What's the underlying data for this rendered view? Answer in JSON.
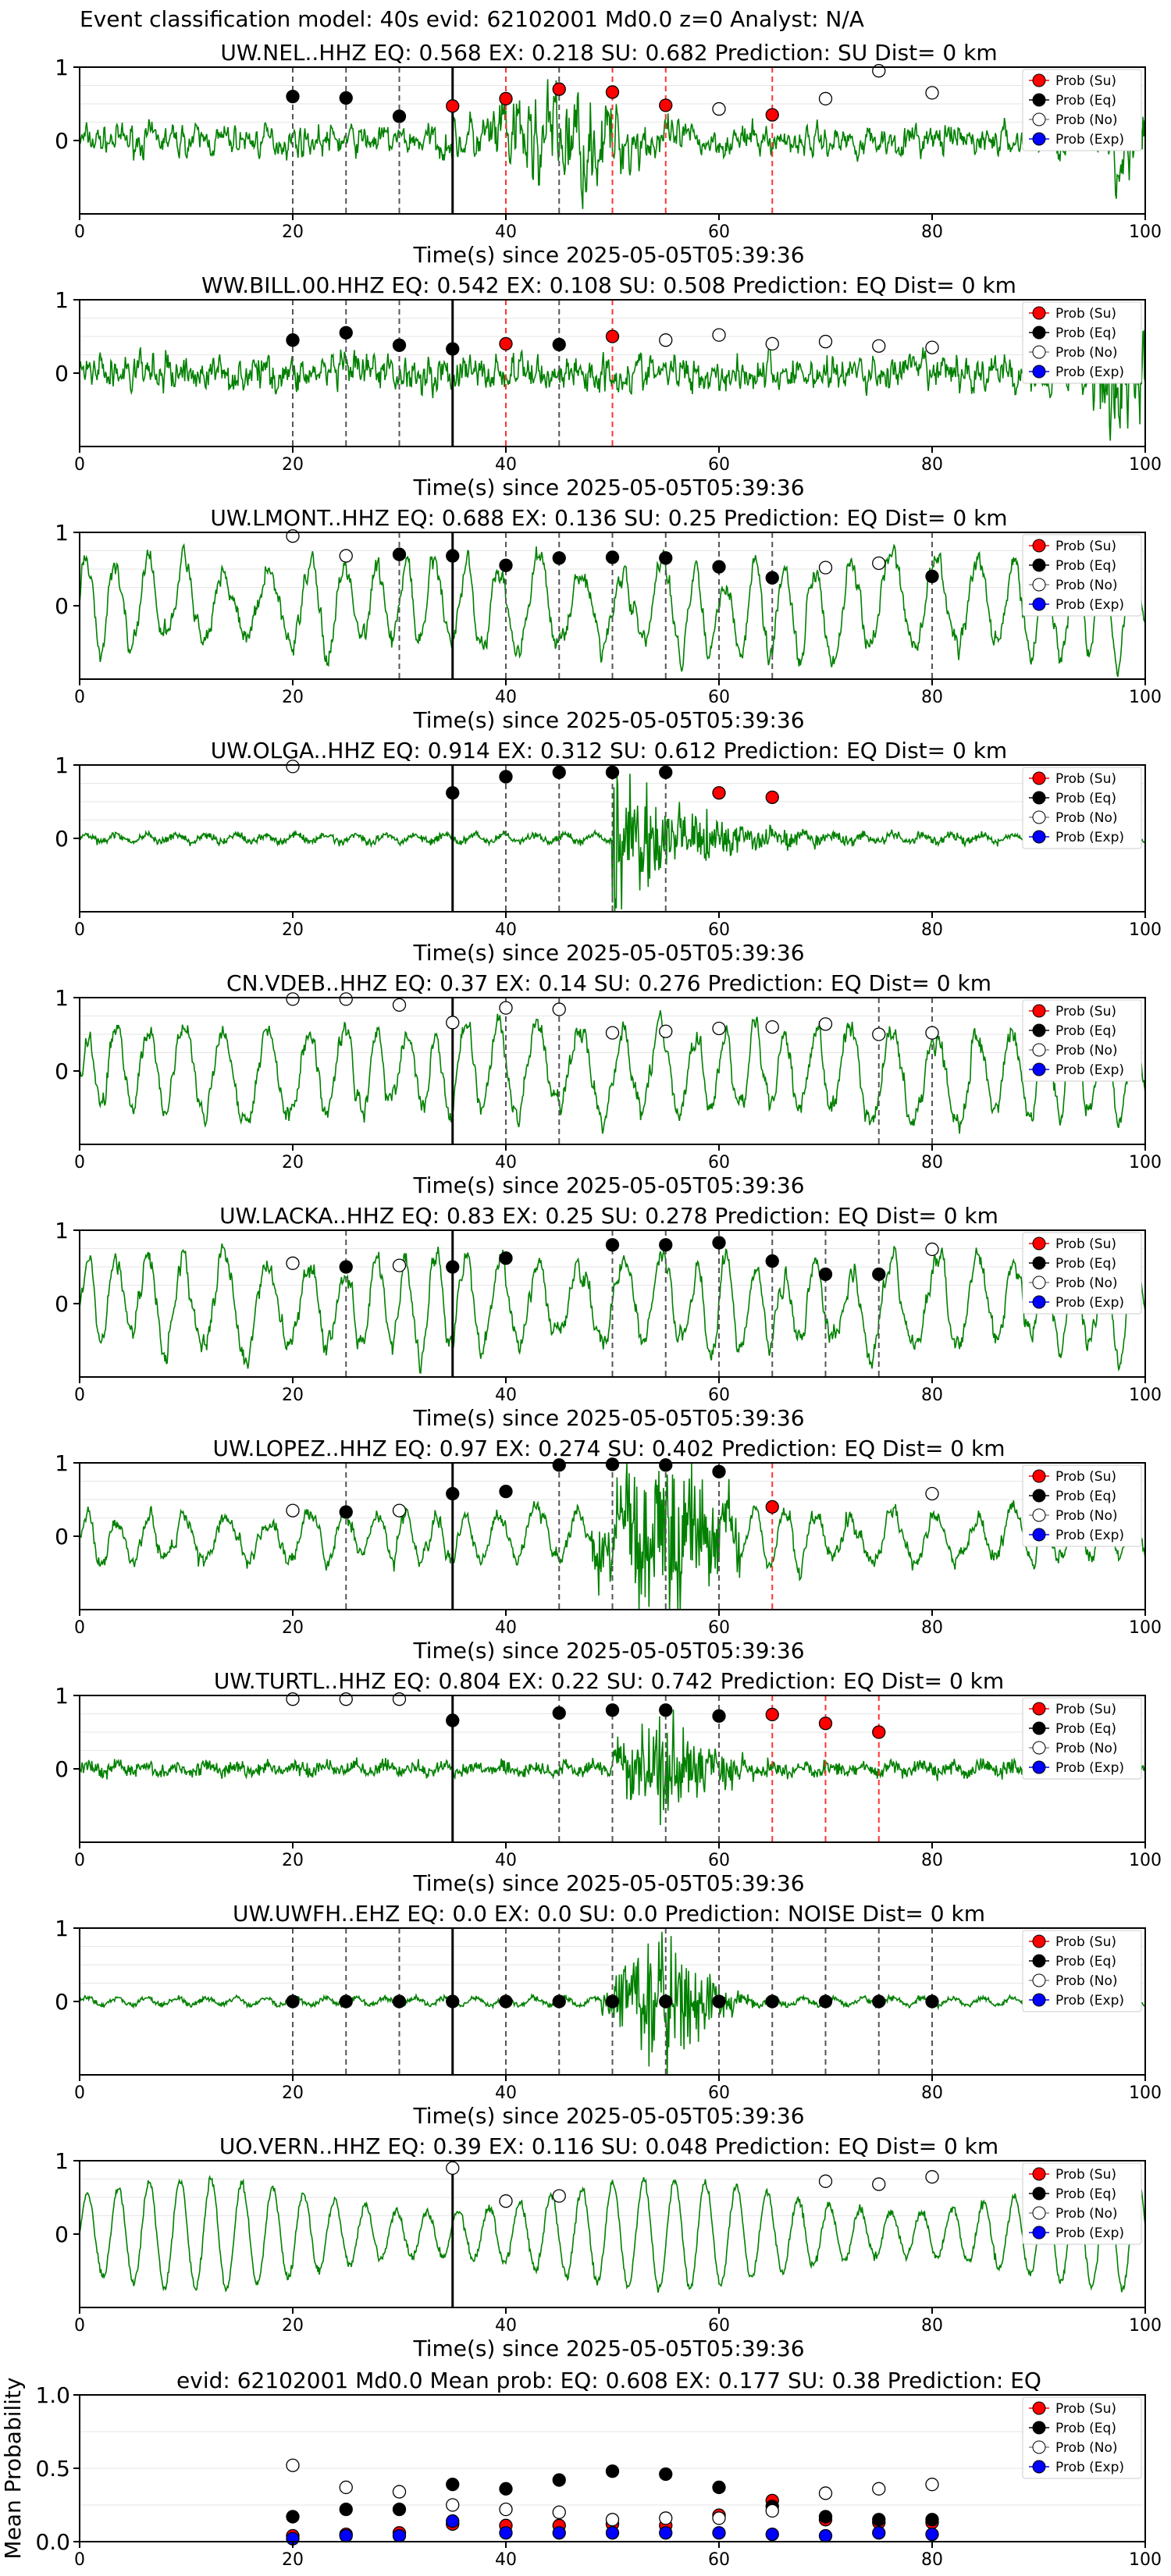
{
  "figure": {
    "suptitle": "Event classification model: 40s evid: 62102001 Md0.0 z=0 Analyst: N/A",
    "xlabel": "Time(s) since 2025-05-05T05:39:36",
    "legend": [
      "Prob (Su)",
      "Prob (Eq)",
      "Prob (No)",
      "Prob (Exp)"
    ],
    "xticks": [
      "0",
      "20",
      "40",
      "60",
      "80",
      "100"
    ]
  },
  "colors": {
    "waveform": "#008000",
    "su": "#ff0000",
    "eq": "#000000",
    "no": "#ffffff",
    "exp": "#0000ff",
    "line_eq": "#555555",
    "line_su": "#ff3333"
  },
  "chart_data": {
    "type": "scatter",
    "x": [
      20,
      25,
      30,
      35,
      40,
      45,
      50,
      55,
      60,
      65,
      70,
      75,
      80
    ],
    "xlim": [
      0,
      100
    ],
    "origin_time_s": 35,
    "stations": [
      {
        "title": "UW.NEL..HHZ   EQ: 0.568  EX: 0.218  SU: 0.682   Prediction: SU    Dist= 0 km",
        "style": "impulsive-mid",
        "points": [
          [
            20,
            0.6,
            "eq"
          ],
          [
            25,
            0.58,
            "eq"
          ],
          [
            30,
            0.33,
            "eq"
          ],
          [
            35,
            0.47,
            "su"
          ],
          [
            40,
            0.57,
            "su"
          ],
          [
            45,
            0.7,
            "su"
          ],
          [
            50,
            0.66,
            "su"
          ],
          [
            55,
            0.48,
            "su"
          ],
          [
            60,
            0.43,
            "no"
          ],
          [
            65,
            0.35,
            "su"
          ],
          [
            70,
            0.57,
            "no"
          ],
          [
            75,
            0.95,
            "no"
          ],
          [
            80,
            0.65,
            "no"
          ]
        ],
        "lines": [
          [
            20,
            "eq"
          ],
          [
            25,
            "eq"
          ],
          [
            30,
            "eq"
          ],
          [
            35,
            "su"
          ],
          [
            40,
            "su"
          ],
          [
            45,
            "eq"
          ],
          [
            50,
            "su"
          ],
          [
            55,
            "su"
          ],
          [
            65,
            "su"
          ]
        ]
      },
      {
        "title": "WW.BILL.00.HHZ   EQ: 0.542  EX: 0.108  SU: 0.508   Prediction: EQ    Dist= 0 km",
        "style": "noise",
        "points": [
          [
            20,
            0.45,
            "eq"
          ],
          [
            25,
            0.55,
            "eq"
          ],
          [
            30,
            0.38,
            "eq"
          ],
          [
            35,
            0.33,
            "eq"
          ],
          [
            40,
            0.4,
            "su"
          ],
          [
            45,
            0.39,
            "eq"
          ],
          [
            50,
            0.5,
            "su"
          ],
          [
            55,
            0.45,
            "no"
          ],
          [
            60,
            0.52,
            "no"
          ],
          [
            65,
            0.4,
            "no"
          ],
          [
            70,
            0.43,
            "no"
          ],
          [
            75,
            0.37,
            "no"
          ],
          [
            80,
            0.35,
            "no"
          ]
        ],
        "lines": [
          [
            20,
            "eq"
          ],
          [
            25,
            "eq"
          ],
          [
            30,
            "eq"
          ],
          [
            40,
            "su"
          ],
          [
            45,
            "eq"
          ],
          [
            50,
            "su"
          ]
        ]
      },
      {
        "title": "UW.LMONT..HHZ   EQ: 0.688  EX: 0.136  SU: 0.25   Prediction: EQ    Dist= 0 km",
        "style": "lowfreq",
        "points": [
          [
            20,
            0.95,
            "no"
          ],
          [
            25,
            0.68,
            "no"
          ],
          [
            30,
            0.7,
            "eq"
          ],
          [
            35,
            0.68,
            "eq"
          ],
          [
            40,
            0.55,
            "eq"
          ],
          [
            45,
            0.65,
            "eq"
          ],
          [
            50,
            0.66,
            "eq"
          ],
          [
            55,
            0.65,
            "eq"
          ],
          [
            60,
            0.53,
            "eq"
          ],
          [
            65,
            0.38,
            "eq"
          ],
          [
            70,
            0.52,
            "no"
          ],
          [
            75,
            0.58,
            "no"
          ],
          [
            80,
            0.4,
            "eq"
          ]
        ],
        "lines": [
          [
            30,
            "eq"
          ],
          [
            40,
            "eq"
          ],
          [
            45,
            "eq"
          ],
          [
            50,
            "eq"
          ],
          [
            55,
            "eq"
          ],
          [
            60,
            "eq"
          ],
          [
            65,
            "eq"
          ],
          [
            80,
            "eq"
          ]
        ]
      },
      {
        "title": "UW.OLGA..HHZ   EQ: 0.914  EX: 0.312  SU: 0.612   Prediction: EQ    Dist= 0 km",
        "style": "quiet-burst",
        "points": [
          [
            20,
            0.98,
            "no"
          ],
          [
            35,
            0.62,
            "eq"
          ],
          [
            40,
            0.84,
            "eq"
          ],
          [
            45,
            0.9,
            "eq"
          ],
          [
            50,
            0.9,
            "eq"
          ],
          [
            55,
            0.9,
            "eq"
          ],
          [
            60,
            0.62,
            "su"
          ],
          [
            65,
            0.56,
            "su"
          ]
        ],
        "lines": [
          [
            40,
            "eq"
          ],
          [
            45,
            "eq"
          ],
          [
            50,
            "eq"
          ],
          [
            55,
            "eq"
          ]
        ]
      },
      {
        "title": "CN.VDEB..HHZ   EQ: 0.37  EX: 0.14  SU: 0.276   Prediction: EQ    Dist= 0 km",
        "style": "lowfreq",
        "points": [
          [
            20,
            0.98,
            "no"
          ],
          [
            25,
            0.98,
            "no"
          ],
          [
            30,
            0.9,
            "no"
          ],
          [
            35,
            0.66,
            "no"
          ],
          [
            40,
            0.86,
            "no"
          ],
          [
            45,
            0.84,
            "no"
          ],
          [
            50,
            0.52,
            "no"
          ],
          [
            55,
            0.54,
            "no"
          ],
          [
            60,
            0.58,
            "no"
          ],
          [
            65,
            0.6,
            "no"
          ],
          [
            70,
            0.64,
            "no"
          ],
          [
            75,
            0.5,
            "no"
          ],
          [
            80,
            0.52,
            "no"
          ]
        ],
        "lines": [
          [
            40,
            "eq"
          ],
          [
            45,
            "eq"
          ],
          [
            75,
            "eq"
          ],
          [
            80,
            "eq"
          ]
        ]
      },
      {
        "title": "UW.LACKA..HHZ   EQ: 0.83  EX: 0.25  SU: 0.278   Prediction: EQ    Dist= 0 km",
        "style": "lowfreq",
        "points": [
          [
            20,
            0.55,
            "no"
          ],
          [
            25,
            0.5,
            "eq"
          ],
          [
            30,
            0.52,
            "no"
          ],
          [
            35,
            0.5,
            "eq"
          ],
          [
            40,
            0.62,
            "eq"
          ],
          [
            50,
            0.8,
            "eq"
          ],
          [
            55,
            0.8,
            "eq"
          ],
          [
            60,
            0.83,
            "eq"
          ],
          [
            65,
            0.58,
            "eq"
          ],
          [
            70,
            0.4,
            "eq"
          ],
          [
            75,
            0.4,
            "eq"
          ],
          [
            80,
            0.74,
            "no"
          ]
        ],
        "lines": [
          [
            25,
            "eq"
          ],
          [
            50,
            "eq"
          ],
          [
            55,
            "eq"
          ],
          [
            60,
            "eq"
          ],
          [
            65,
            "eq"
          ],
          [
            70,
            "eq"
          ],
          [
            75,
            "eq"
          ]
        ]
      },
      {
        "title": "UW.LOPEZ..HHZ   EQ: 0.97  EX: 0.274  SU: 0.402   Prediction: EQ    Dist= 0 km",
        "style": "lowfreq-burst",
        "points": [
          [
            20,
            0.35,
            "no"
          ],
          [
            25,
            0.33,
            "eq"
          ],
          [
            30,
            0.35,
            "no"
          ],
          [
            35,
            0.58,
            "eq"
          ],
          [
            40,
            0.61,
            "eq"
          ],
          [
            45,
            0.97,
            "eq"
          ],
          [
            50,
            0.98,
            "eq"
          ],
          [
            55,
            0.97,
            "eq"
          ],
          [
            60,
            0.88,
            "eq"
          ],
          [
            65,
            0.4,
            "su"
          ],
          [
            80,
            0.58,
            "no"
          ]
        ],
        "lines": [
          [
            25,
            "eq"
          ],
          [
            45,
            "eq"
          ],
          [
            50,
            "eq"
          ],
          [
            55,
            "eq"
          ],
          [
            60,
            "eq"
          ],
          [
            65,
            "su"
          ]
        ]
      },
      {
        "title": "UW.TURTL..HHZ   EQ: 0.804  EX: 0.22  SU: 0.742   Prediction: EQ    Dist= 0 km",
        "style": "quiet-burst2",
        "points": [
          [
            20,
            0.95,
            "no"
          ],
          [
            25,
            0.95,
            "no"
          ],
          [
            30,
            0.95,
            "no"
          ],
          [
            35,
            0.66,
            "eq"
          ],
          [
            45,
            0.76,
            "eq"
          ],
          [
            50,
            0.8,
            "eq"
          ],
          [
            55,
            0.8,
            "eq"
          ],
          [
            60,
            0.72,
            "eq"
          ],
          [
            65,
            0.74,
            "su"
          ],
          [
            70,
            0.62,
            "su"
          ],
          [
            75,
            0.5,
            "su"
          ]
        ],
        "lines": [
          [
            45,
            "eq"
          ],
          [
            50,
            "eq"
          ],
          [
            55,
            "eq"
          ],
          [
            60,
            "eq"
          ],
          [
            65,
            "su"
          ],
          [
            70,
            "su"
          ],
          [
            75,
            "su"
          ]
        ]
      },
      {
        "title": "UW.UWFH..EHZ   EQ: 0.0  EX: 0.0  SU: 0.0   Prediction: NOISE    Dist= 0 km",
        "style": "thin-burst",
        "points": [
          [
            20,
            0,
            "eq"
          ],
          [
            25,
            0,
            "eq"
          ],
          [
            30,
            0,
            "eq"
          ],
          [
            35,
            0,
            "eq"
          ],
          [
            40,
            0,
            "eq"
          ],
          [
            45,
            0,
            "eq"
          ],
          [
            50,
            0,
            "eq"
          ],
          [
            55,
            0,
            "eq"
          ],
          [
            60,
            0,
            "eq"
          ],
          [
            65,
            0,
            "eq"
          ],
          [
            70,
            0,
            "eq"
          ],
          [
            75,
            0,
            "eq"
          ],
          [
            80,
            0,
            "eq"
          ]
        ],
        "lines": [
          [
            20,
            "eq"
          ],
          [
            25,
            "eq"
          ],
          [
            30,
            "eq"
          ],
          [
            40,
            "eq"
          ],
          [
            45,
            "eq"
          ],
          [
            50,
            "eq"
          ],
          [
            55,
            "eq"
          ],
          [
            60,
            "eq"
          ],
          [
            65,
            "eq"
          ],
          [
            70,
            "eq"
          ],
          [
            75,
            "eq"
          ],
          [
            80,
            "eq"
          ]
        ]
      },
      {
        "title": "UO.VERN..HHZ   EQ: 0.39  EX: 0.116  SU: 0.048   Prediction: EQ    Dist= 0 km",
        "style": "sine",
        "points": [
          [
            35,
            0.9,
            "no"
          ],
          [
            40,
            0.45,
            "no"
          ],
          [
            45,
            0.52,
            "no"
          ],
          [
            70,
            0.72,
            "no"
          ],
          [
            75,
            0.68,
            "no"
          ],
          [
            80,
            0.78,
            "no"
          ]
        ],
        "lines": []
      }
    ],
    "mean": {
      "title": "evid: 62102001  Md0.0   Mean prob:   EQ: 0.608  EX: 0.177  SU: 0.38   Prediction: EQ",
      "ylabel": "Mean Probability",
      "ylim": [
        0,
        1
      ],
      "yticks": [
        "0.0",
        "0.5",
        "1.0"
      ],
      "series": [
        {
          "name": "Prob (Su)",
          "key": "su",
          "values": [
            0.04,
            0.05,
            0.06,
            0.12,
            0.11,
            0.11,
            0.12,
            0.11,
            0.18,
            0.28,
            0.15,
            0.13,
            0.13
          ]
        },
        {
          "name": "Prob (Eq)",
          "key": "eq",
          "values": [
            0.17,
            0.22,
            0.22,
            0.39,
            0.36,
            0.42,
            0.48,
            0.46,
            0.37,
            0.24,
            0.17,
            0.15,
            0.15
          ]
        },
        {
          "name": "Prob (No)",
          "key": "no",
          "values": [
            0.52,
            0.37,
            0.34,
            0.25,
            0.22,
            0.2,
            0.15,
            0.16,
            0.16,
            0.21,
            0.33,
            0.36,
            0.39
          ]
        },
        {
          "name": "Prob (Exp)",
          "key": "exp",
          "values": [
            0.02,
            0.04,
            0.04,
            0.14,
            0.06,
            0.06,
            0.06,
            0.06,
            0.06,
            0.05,
            0.04,
            0.06,
            0.05
          ]
        }
      ]
    }
  }
}
